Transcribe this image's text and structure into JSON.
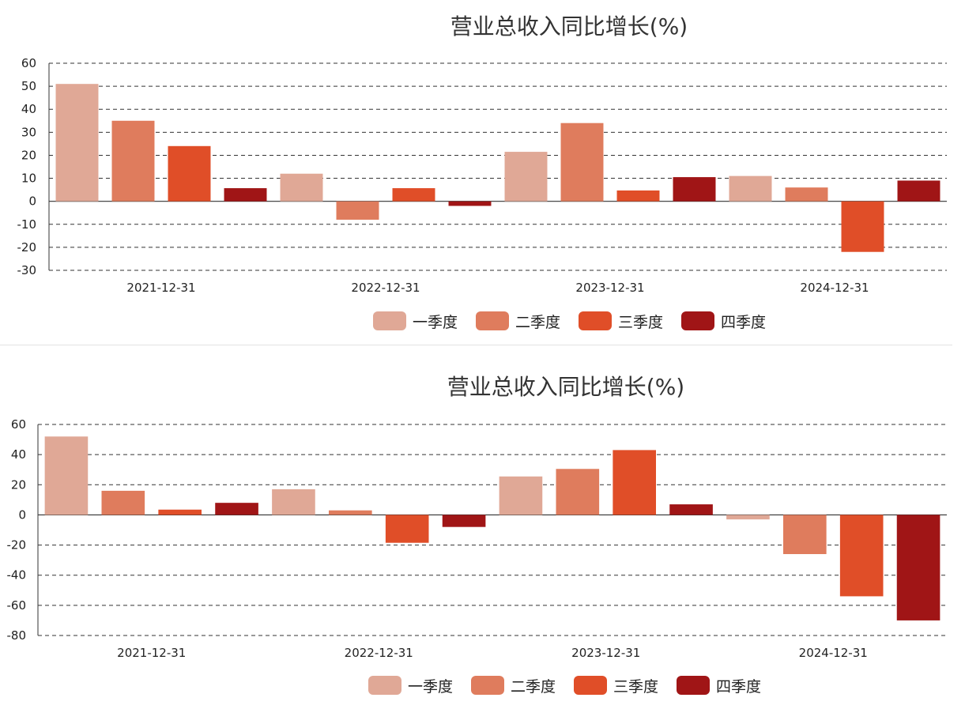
{
  "chart_data": [
    {
      "type": "bar",
      "title": "营业总收入同比增长(%)",
      "categories": [
        "2021-12-31",
        "2022-12-31",
        "2023-12-31",
        "2024-12-31"
      ],
      "series": [
        {
          "name": "一季度",
          "color": "#E0A896",
          "values": [
            51,
            12,
            21.5,
            11
          ]
        },
        {
          "name": "二季度",
          "color": "#DF7C5D",
          "values": [
            35,
            -8,
            34,
            6
          ]
        },
        {
          "name": "三季度",
          "color": "#E04E28",
          "values": [
            24,
            5.7,
            4.7,
            -22
          ]
        },
        {
          "name": "四季度",
          "color": "#A01516",
          "values": [
            5.7,
            -2,
            10.5,
            9
          ]
        }
      ],
      "ylim": [
        -30,
        60
      ],
      "yticks": [
        60,
        50,
        40,
        30,
        20,
        10,
        0,
        -10,
        -20,
        -30
      ],
      "grid": true,
      "legend": "bottom-center"
    },
    {
      "type": "bar",
      "title": "营业总收入同比增长(%)",
      "categories": [
        "2021-12-31",
        "2022-12-31",
        "2023-12-31",
        "2024-12-31"
      ],
      "series": [
        {
          "name": "一季度",
          "color": "#E0A896",
          "values": [
            52,
            17,
            25.5,
            -3
          ]
        },
        {
          "name": "二季度",
          "color": "#DF7C5D",
          "values": [
            16,
            3,
            30.5,
            -26
          ]
        },
        {
          "name": "三季度",
          "color": "#E04E28",
          "values": [
            3.5,
            -18.5,
            43,
            -54
          ]
        },
        {
          "name": "四季度",
          "color": "#A01516",
          "values": [
            8,
            -8,
            7,
            -70
          ]
        }
      ],
      "ylim": [
        -80,
        60
      ],
      "yticks": [
        60,
        40,
        20,
        0,
        -20,
        -40,
        -60,
        -80
      ],
      "grid": true,
      "legend": "bottom-center"
    }
  ]
}
